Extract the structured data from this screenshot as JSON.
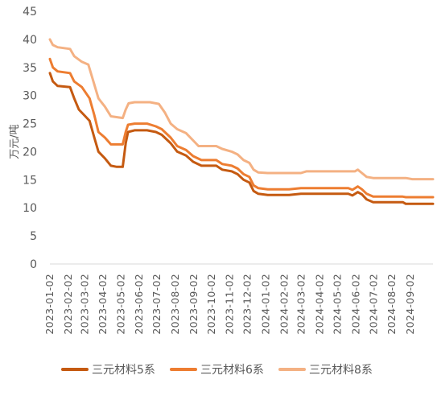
{
  "chart_data": {
    "type": "line",
    "title": "",
    "xlabel": "",
    "ylabel": "万元/吨",
    "ylim": [
      0,
      45
    ],
    "yticks": [
      0,
      5,
      10,
      15,
      20,
      25,
      30,
      35,
      40,
      45
    ],
    "xlim": [
      "2023-01-02",
      "2024-10-10"
    ],
    "xtick_labels": [
      "2023-01-02",
      "2023-02-02",
      "2023-03-02",
      "2023-04-02",
      "2023-05-02",
      "2023-06-02",
      "2023-07-02",
      "2023-08-02",
      "2023-09-02",
      "2023-10-02",
      "2023-11-02",
      "2023-12-02",
      "2024-01-02",
      "2024-02-02",
      "2024-03-02",
      "2024-04-02",
      "2024-05-02",
      "2024-06-02",
      "2024-07-02",
      "2024-08-02",
      "2024-09-02"
    ],
    "grid": false,
    "legend_position": "bottom",
    "series": [
      {
        "name": "三元材料5系",
        "color": "#C55A11",
        "points": [
          [
            "2023-01-02",
            34.0
          ],
          [
            "2023-01-07",
            32.5
          ],
          [
            "2023-01-15",
            31.7
          ],
          [
            "2023-02-05",
            31.5
          ],
          [
            "2023-02-12",
            29.5
          ],
          [
            "2023-02-20",
            27.5
          ],
          [
            "2023-03-01",
            26.5
          ],
          [
            "2023-03-10",
            25.5
          ],
          [
            "2023-03-18",
            22.5
          ],
          [
            "2023-03-25",
            20.0
          ],
          [
            "2023-04-05",
            18.8
          ],
          [
            "2023-04-15",
            17.5
          ],
          [
            "2023-04-25",
            17.3
          ],
          [
            "2023-05-05",
            17.3
          ],
          [
            "2023-05-10",
            21.5
          ],
          [
            "2023-05-14",
            23.5
          ],
          [
            "2023-05-25",
            23.8
          ],
          [
            "2023-06-15",
            23.8
          ],
          [
            "2023-06-30",
            23.5
          ],
          [
            "2023-07-10",
            23.0
          ],
          [
            "2023-07-25",
            21.5
          ],
          [
            "2023-08-05",
            20.0
          ],
          [
            "2023-08-20",
            19.3
          ],
          [
            "2023-09-01",
            18.2
          ],
          [
            "2023-09-15",
            17.5
          ],
          [
            "2023-10-10",
            17.5
          ],
          [
            "2023-10-20",
            16.8
          ],
          [
            "2023-11-05",
            16.5
          ],
          [
            "2023-11-15",
            16.0
          ],
          [
            "2023-11-25",
            15.0
          ],
          [
            "2023-12-05",
            14.5
          ],
          [
            "2023-12-12",
            13.0
          ],
          [
            "2023-12-20",
            12.5
          ],
          [
            "2024-01-05",
            12.3
          ],
          [
            "2024-02-10",
            12.3
          ],
          [
            "2024-03-01",
            12.5
          ],
          [
            "2024-05-20",
            12.5
          ],
          [
            "2024-05-27",
            12.2
          ],
          [
            "2024-06-05",
            12.8
          ],
          [
            "2024-06-12",
            12.4
          ],
          [
            "2024-06-20",
            11.5
          ],
          [
            "2024-07-01",
            11.0
          ],
          [
            "2024-08-20",
            11.0
          ],
          [
            "2024-08-25",
            10.7
          ],
          [
            "2024-10-10",
            10.7
          ]
        ]
      },
      {
        "name": "三元材料6系",
        "color": "#ED7D31",
        "points": [
          [
            "2023-01-02",
            36.5
          ],
          [
            "2023-01-07",
            35.0
          ],
          [
            "2023-01-15",
            34.3
          ],
          [
            "2023-02-05",
            34.0
          ],
          [
            "2023-02-12",
            32.5
          ],
          [
            "2023-02-25",
            31.5
          ],
          [
            "2023-03-10",
            29.5
          ],
          [
            "2023-03-18",
            26.5
          ],
          [
            "2023-03-25",
            23.5
          ],
          [
            "2023-04-05",
            22.5
          ],
          [
            "2023-04-15",
            21.3
          ],
          [
            "2023-05-05",
            21.3
          ],
          [
            "2023-05-10",
            23.5
          ],
          [
            "2023-05-14",
            24.8
          ],
          [
            "2023-05-25",
            25.0
          ],
          [
            "2023-06-15",
            25.0
          ],
          [
            "2023-06-30",
            24.5
          ],
          [
            "2023-07-10",
            24.0
          ],
          [
            "2023-07-25",
            22.5
          ],
          [
            "2023-08-05",
            21.0
          ],
          [
            "2023-08-20",
            20.3
          ],
          [
            "2023-09-01",
            19.2
          ],
          [
            "2023-09-15",
            18.5
          ],
          [
            "2023-10-10",
            18.5
          ],
          [
            "2023-10-20",
            17.8
          ],
          [
            "2023-11-05",
            17.5
          ],
          [
            "2023-11-15",
            17.0
          ],
          [
            "2023-11-25",
            16.0
          ],
          [
            "2023-12-05",
            15.5
          ],
          [
            "2023-12-12",
            14.0
          ],
          [
            "2023-12-20",
            13.5
          ],
          [
            "2024-01-05",
            13.3
          ],
          [
            "2024-02-10",
            13.3
          ],
          [
            "2024-03-01",
            13.5
          ],
          [
            "2024-05-20",
            13.5
          ],
          [
            "2024-05-27",
            13.2
          ],
          [
            "2024-06-05",
            13.8
          ],
          [
            "2024-06-12",
            13.3
          ],
          [
            "2024-06-20",
            12.5
          ],
          [
            "2024-07-01",
            12.0
          ],
          [
            "2024-08-20",
            12.0
          ],
          [
            "2024-08-25",
            11.9
          ],
          [
            "2024-10-10",
            11.9
          ]
        ]
      },
      {
        "name": "三元材料8系",
        "color": "#F4B183",
        "points": [
          [
            "2023-01-02",
            40.0
          ],
          [
            "2023-01-07",
            39.0
          ],
          [
            "2023-01-15",
            38.6
          ],
          [
            "2023-02-05",
            38.3
          ],
          [
            "2023-02-12",
            37.0
          ],
          [
            "2023-02-25",
            36.0
          ],
          [
            "2023-03-08",
            35.5
          ],
          [
            "2023-03-15",
            33.0
          ],
          [
            "2023-03-25",
            29.5
          ],
          [
            "2023-04-05",
            28.0
          ],
          [
            "2023-04-15",
            26.3
          ],
          [
            "2023-05-05",
            26.0
          ],
          [
            "2023-05-10",
            27.5
          ],
          [
            "2023-05-15",
            28.6
          ],
          [
            "2023-05-25",
            28.8
          ],
          [
            "2023-06-20",
            28.8
          ],
          [
            "2023-07-05",
            28.5
          ],
          [
            "2023-07-15",
            27.0
          ],
          [
            "2023-07-25",
            25.0
          ],
          [
            "2023-08-05",
            24.0
          ],
          [
            "2023-08-20",
            23.3
          ],
          [
            "2023-09-01",
            22.0
          ],
          [
            "2023-09-10",
            21.0
          ],
          [
            "2023-10-10",
            21.0
          ],
          [
            "2023-10-20",
            20.5
          ],
          [
            "2023-11-05",
            20.0
          ],
          [
            "2023-11-15",
            19.5
          ],
          [
            "2023-11-25",
            18.5
          ],
          [
            "2023-12-05",
            18.0
          ],
          [
            "2023-12-12",
            16.8
          ],
          [
            "2023-12-20",
            16.3
          ],
          [
            "2024-01-05",
            16.2
          ],
          [
            "2024-03-01",
            16.2
          ],
          [
            "2024-03-10",
            16.5
          ],
          [
            "2024-05-31",
            16.5
          ],
          [
            "2024-06-05",
            16.8
          ],
          [
            "2024-06-12",
            16.2
          ],
          [
            "2024-06-20",
            15.5
          ],
          [
            "2024-07-01",
            15.3
          ],
          [
            "2024-08-25",
            15.3
          ],
          [
            "2024-09-05",
            15.1
          ],
          [
            "2024-10-10",
            15.1
          ]
        ]
      }
    ]
  }
}
